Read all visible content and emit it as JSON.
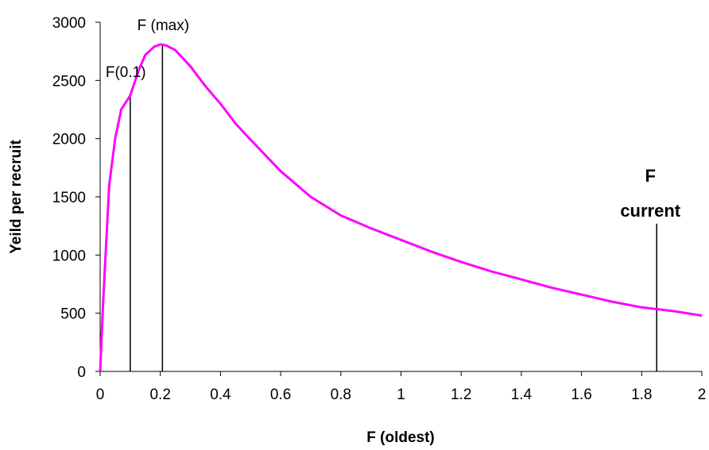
{
  "chart_data": {
    "type": "line",
    "title": "",
    "xlabel": "F (oldest)",
    "ylabel": "Yeild per recruit",
    "xlim": [
      0,
      2
    ],
    "ylim": [
      0,
      3000
    ],
    "xticks": [
      0,
      0.2,
      0.4,
      0.6,
      0.8,
      1,
      1.2,
      1.4,
      1.6,
      1.8,
      2
    ],
    "xtick_labels": [
      "0",
      "0.2",
      "0.4",
      "0.6",
      "0.8",
      "1",
      "1.2",
      "1.4",
      "1.6",
      "1.8",
      "2"
    ],
    "yticks": [
      0,
      500,
      1000,
      1500,
      2000,
      2500,
      3000
    ],
    "ytick_labels": [
      "0",
      "500",
      "1000",
      "1500",
      "2000",
      "2500",
      "3000"
    ],
    "grid": false,
    "line_color": "#ff00ff",
    "series": [
      {
        "x": [
          0,
          0.01,
          0.02,
          0.03,
          0.05,
          0.07,
          0.1,
          0.13,
          0.15,
          0.18,
          0.2,
          0.22,
          0.25,
          0.3,
          0.35,
          0.4,
          0.45,
          0.5,
          0.6,
          0.7,
          0.8,
          0.9,
          1.0,
          1.1,
          1.2,
          1.3,
          1.4,
          1.5,
          1.6,
          1.7,
          1.8,
          1.9,
          2.0
        ],
        "y": [
          0,
          600,
          1100,
          1600,
          2000,
          2250,
          2370,
          2600,
          2720,
          2790,
          2810,
          2800,
          2760,
          2620,
          2450,
          2300,
          2130,
          1990,
          1720,
          1500,
          1340,
          1230,
          1130,
          1030,
          940,
          860,
          790,
          720,
          660,
          600,
          550,
          520,
          480
        ]
      }
    ],
    "annotations": [
      {
        "text": "F(0.1)",
        "x": 0.1,
        "y_end": 2370
      },
      {
        "text": "F (max)",
        "x": 0.207,
        "y_end": 2810
      },
      {
        "text": "F",
        "text2": "current",
        "x": 1.85,
        "y_end": 1270
      }
    ]
  }
}
